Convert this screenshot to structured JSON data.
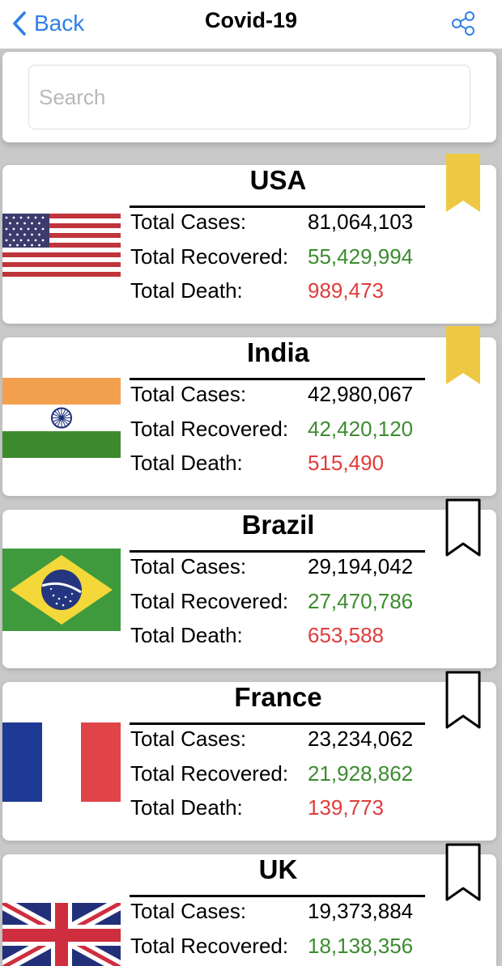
{
  "nav": {
    "back_label": "Back",
    "title": "Covid-19",
    "accent_color": "#2f80e6"
  },
  "search": {
    "placeholder": "Search",
    "value": ""
  },
  "labels": {
    "total_cases": "Total Cases:",
    "total_recovered": "Total Recovered:",
    "total_death": "Total Death:"
  },
  "colors": {
    "recovered": "#3c8c2f",
    "death": "#e03c3c",
    "bookmark_filled": "#eec843"
  },
  "countries": [
    {
      "name": "USA",
      "flag": "usa-flag-icon",
      "total_cases": "81,064,103",
      "total_recovered": "55,429,994",
      "total_death": "989,473",
      "bookmarked": true
    },
    {
      "name": "India",
      "flag": "india-flag-icon",
      "total_cases": "42,980,067",
      "total_recovered": "42,420,120",
      "total_death": "515,490",
      "bookmarked": true
    },
    {
      "name": "Brazil",
      "flag": "brazil-flag-icon",
      "total_cases": "29,194,042",
      "total_recovered": "27,470,786",
      "total_death": "653,588",
      "bookmarked": false
    },
    {
      "name": "France",
      "flag": "france-flag-icon",
      "total_cases": "23,234,062",
      "total_recovered": "21,928,862",
      "total_death": "139,773",
      "bookmarked": false
    },
    {
      "name": "UK",
      "flag": "uk-flag-icon",
      "total_cases": "19,373,884",
      "total_recovered": "18,138,356",
      "total_death": "",
      "bookmarked": false
    }
  ]
}
